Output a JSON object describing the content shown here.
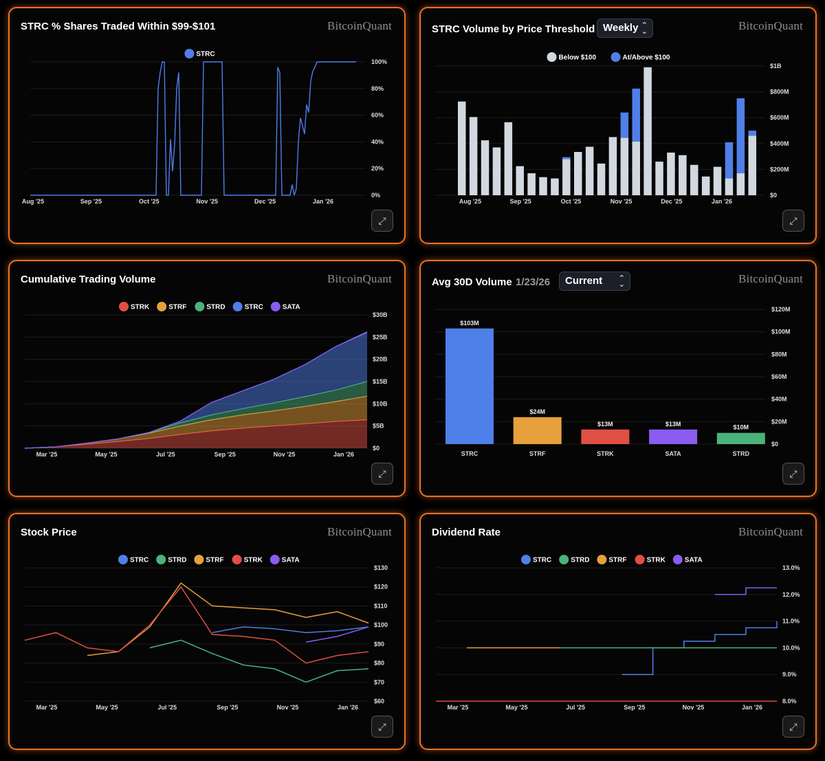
{
  "brand": "BitcoinQuant",
  "panels": {
    "p1": {
      "title": "STRC % Shares Traded Within $99-$101"
    },
    "p2": {
      "title": "STRC Volume by Price Threshold",
      "select_value": "Weekly"
    },
    "p3": {
      "title": "Cumulative Trading Volume"
    },
    "p4": {
      "title": "Avg 30D Volume",
      "subtitle": "1/23/26",
      "select_value": "Current"
    },
    "p5": {
      "title": "Stock Price"
    },
    "p6": {
      "title": "Dividend Rate"
    }
  },
  "icons": {
    "expand": "expand-icon",
    "select_chevron": "chevron-up-down-icon"
  },
  "colors": {
    "STRC": "#4f7fe8",
    "STRD": "#4bb27a",
    "STRF": "#e6a03c",
    "STRK": "#e04f45",
    "SATA": "#8a5cf0",
    "below": "#d2d8e0",
    "panel_border": "#e8702a"
  },
  "chart_data": [
    {
      "id": "c1",
      "type": "line",
      "title": "STRC % Shares Traded Within $99-$101",
      "legend": [
        "STRC"
      ],
      "ylim": [
        0,
        100
      ],
      "yaxis": "right",
      "yticks": [
        "0%",
        "20%",
        "40%",
        "60%",
        "80%",
        "100%"
      ],
      "xticks": [
        "Aug '25",
        "Sep '25",
        "Oct '25",
        "Nov '25",
        "Dec '25",
        "Jan '26"
      ],
      "series": [
        {
          "name": "STRC",
          "values": [
            0,
            0,
            0,
            0,
            0,
            0,
            0,
            0,
            0,
            0,
            0,
            0,
            0,
            0,
            0,
            0,
            0,
            0,
            0,
            0,
            0,
            0,
            0,
            0,
            0,
            0,
            0,
            0,
            0,
            0,
            0,
            0,
            0,
            0,
            0,
            0,
            0,
            0,
            0,
            0,
            0,
            0,
            0,
            0,
            0,
            0,
            0,
            0,
            0,
            0,
            0,
            0,
            0,
            0,
            0,
            0,
            0,
            0,
            0,
            0,
            0,
            0,
            80,
            92,
            100,
            100,
            0,
            0,
            42,
            18,
            38,
            80,
            92,
            0,
            0,
            0,
            0,
            0,
            0,
            0,
            0,
            0,
            0,
            0,
            100,
            100,
            100,
            100,
            100,
            100,
            100,
            100,
            100,
            100,
            0,
            0,
            0,
            0,
            0,
            0,
            0,
            0,
            0,
            0,
            0,
            0,
            0,
            0,
            0,
            0,
            0,
            0,
            0,
            0,
            0,
            0,
            0,
            0,
            0,
            0,
            96,
            92,
            0,
            0,
            0,
            0,
            0,
            8,
            0,
            5,
            40,
            58,
            52,
            46,
            68,
            62,
            86,
            93,
            96,
            100,
            100,
            100,
            100,
            100,
            100,
            100,
            100,
            100,
            100,
            100,
            100,
            100,
            100,
            100,
            100,
            100,
            100,
            100,
            100
          ]
        }
      ]
    },
    {
      "id": "c2",
      "type": "bar",
      "stacked": true,
      "title": "STRC Volume by Price Threshold",
      "legend": [
        "Below $100",
        "At/Above $100"
      ],
      "ylim": [
        0,
        1000
      ],
      "yunit": "M",
      "yaxis": "right",
      "yticks": [
        "$0",
        "$200M",
        "$400M",
        "$600M",
        "$800M",
        "$1B"
      ],
      "xticks": [
        "Aug '25",
        "Sep '25",
        "Oct '25",
        "Nov '25",
        "Dec '25",
        "Jan '26"
      ],
      "series": [
        {
          "name": "Below $100",
          "values": [
            725,
            605,
            425,
            370,
            565,
            225,
            170,
            140,
            130,
            280,
            335,
            375,
            245,
            450,
            445,
            415,
            990,
            260,
            330,
            310,
            235,
            145,
            220,
            130,
            170,
            460
          ]
        },
        {
          "name": "At/Above $100",
          "values": [
            0,
            0,
            0,
            0,
            0,
            0,
            0,
            0,
            0,
            15,
            0,
            0,
            0,
            0,
            195,
            410,
            0,
            0,
            0,
            0,
            0,
            0,
            0,
            280,
            580,
            40
          ]
        }
      ]
    },
    {
      "id": "c3",
      "type": "area",
      "stacked": true,
      "title": "Cumulative Trading Volume",
      "legend": [
        "STRK",
        "STRF",
        "STRD",
        "STRC",
        "SATA"
      ],
      "ylim": [
        0,
        30
      ],
      "yunit": "B",
      "yaxis": "right",
      "yticks": [
        "$0",
        "$5B",
        "$10B",
        "$15B",
        "$20B",
        "$25B",
        "$30B"
      ],
      "xticks": [
        "Mar '25",
        "May '25",
        "Jul '25",
        "Sep '25",
        "Nov '25",
        "Jan '26"
      ],
      "x": [
        "Feb '25",
        "Mar '25",
        "Apr '25",
        "May '25",
        "Jun '25",
        "Jul '25",
        "Aug '25",
        "Sep '25",
        "Oct '25",
        "Nov '25",
        "Dec '25",
        "Jan '26"
      ],
      "series": [
        {
          "name": "STRK",
          "values": [
            0.0,
            0.3,
            0.9,
            1.5,
            2.2,
            3.1,
            3.9,
            4.5,
            5.0,
            5.5,
            6.0,
            6.4
          ]
        },
        {
          "name": "STRF",
          "values": [
            0.0,
            0.0,
            0.25,
            0.6,
            1.2,
            1.9,
            2.5,
            3.0,
            3.4,
            3.9,
            4.5,
            5.3
          ]
        },
        {
          "name": "STRD",
          "values": [
            0.0,
            0.0,
            0.0,
            0.0,
            0.15,
            0.7,
            1.1,
            1.4,
            1.8,
            2.2,
            2.6,
            3.3
          ]
        },
        {
          "name": "STRC",
          "values": [
            0.0,
            0.0,
            0.0,
            0.0,
            0.0,
            0.4,
            2.8,
            4.0,
            5.3,
            7.2,
            9.8,
            11.0
          ]
        },
        {
          "name": "SATA",
          "values": [
            0.0,
            0.0,
            0.0,
            0.0,
            0.0,
            0.0,
            0.0,
            0.0,
            0.0,
            0.0,
            0.0,
            0.2
          ]
        }
      ]
    },
    {
      "id": "c4",
      "type": "bar",
      "title": "Avg 30D Volume",
      "categories": [
        "STRC",
        "STRF",
        "STRK",
        "SATA",
        "STRD"
      ],
      "values": [
        103,
        24,
        13,
        13,
        10
      ],
      "data_labels": [
        "$103M",
        "$24M",
        "$13M",
        "$13M",
        "$10M"
      ],
      "ylim": [
        0,
        120
      ],
      "yunit": "M",
      "yaxis": "right",
      "yticks": [
        "$0",
        "$20M",
        "$40M",
        "$60M",
        "$80M",
        "$100M",
        "$120M"
      ]
    },
    {
      "id": "c5",
      "type": "line",
      "title": "Stock Price",
      "legend": [
        "STRC",
        "STRD",
        "STRF",
        "STRK",
        "SATA"
      ],
      "ylim": [
        60,
        130
      ],
      "yaxis": "right",
      "yticks": [
        "$60",
        "$70",
        "$80",
        "$90",
        "$100",
        "$110",
        "$120",
        "$130"
      ],
      "xticks": [
        "Mar '25",
        "May '25",
        "Jul '25",
        "Sep '25",
        "Nov '25",
        "Jan '26"
      ],
      "x": [
        "Feb '25",
        "Mar '25",
        "Apr '25",
        "May '25",
        "Jun '25",
        "Jul '25",
        "Aug '25",
        "Sep '25",
        "Oct '25",
        "Nov '25",
        "Dec '25",
        "Jan '26"
      ],
      "series": [
        {
          "name": "STRC",
          "values": [
            null,
            null,
            null,
            null,
            null,
            null,
            96,
            99,
            98,
            96,
            97,
            99
          ]
        },
        {
          "name": "STRD",
          "values": [
            null,
            null,
            null,
            null,
            88,
            92,
            85,
            79,
            77,
            70,
            76,
            77
          ]
        },
        {
          "name": "STRF",
          "values": [
            null,
            null,
            84,
            86,
            99,
            122,
            110,
            109,
            108,
            104,
            107,
            101
          ]
        },
        {
          "name": "STRK",
          "values": [
            92,
            96,
            88,
            86,
            100,
            120,
            95,
            94,
            92,
            80,
            84,
            86
          ]
        },
        {
          "name": "SATA",
          "values": [
            null,
            null,
            null,
            null,
            null,
            null,
            null,
            null,
            null,
            91,
            94,
            99
          ]
        }
      ]
    },
    {
      "id": "c6",
      "type": "line",
      "title": "Dividend Rate",
      "legend": [
        "STRC",
        "STRD",
        "STRF",
        "STRK",
        "SATA"
      ],
      "ylim": [
        8.0,
        13.0
      ],
      "yaxis": "right",
      "yticks": [
        "8.0%",
        "9.0%",
        "10.0%",
        "11.0%",
        "12.0%",
        "13.0%"
      ],
      "xticks": [
        "Mar '25",
        "May '25",
        "Jul '25",
        "Sep '25",
        "Nov '25",
        "Jan '26"
      ],
      "x": [
        "Feb '25",
        "Mar '25",
        "Apr '25",
        "May '25",
        "Jun '25",
        "Jul '25",
        "Aug '25",
        "Sep '25",
        "Oct '25",
        "Nov '25",
        "Dec '25",
        "Jan '26"
      ],
      "series": [
        {
          "name": "STRC",
          "values": [
            null,
            null,
            null,
            null,
            null,
            null,
            9.0,
            10.0,
            10.25,
            10.5,
            10.75,
            11.0
          ]
        },
        {
          "name": "STRD",
          "values": [
            null,
            null,
            null,
            null,
            10.0,
            10.0,
            10.0,
            10.0,
            10.0,
            10.0,
            10.0,
            10.0
          ]
        },
        {
          "name": "STRF",
          "values": [
            null,
            10.0,
            10.0,
            10.0,
            10.0,
            null,
            null,
            null,
            null,
            null,
            null,
            null
          ]
        },
        {
          "name": "STRK",
          "values": [
            8.0,
            8.0,
            8.0,
            8.0,
            8.0,
            8.0,
            8.0,
            8.0,
            8.0,
            8.0,
            8.0,
            8.0
          ]
        },
        {
          "name": "SATA",
          "values": [
            null,
            null,
            null,
            null,
            null,
            null,
            null,
            null,
            null,
            12.0,
            12.25,
            12.25
          ]
        }
      ]
    }
  ]
}
